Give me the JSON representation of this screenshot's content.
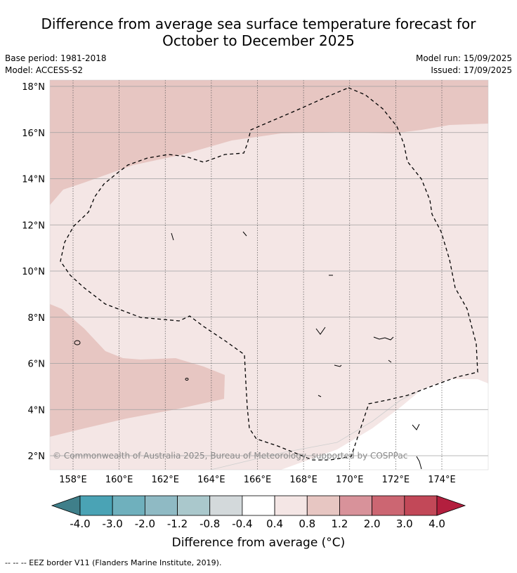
{
  "title_line1": "Difference from average sea surface temperature forecast for",
  "title_line2": "October to December 2025",
  "base_period": "Base period: 1981-2018",
  "model": "Model: ACCESS-S2",
  "model_run": "Model run: 15/09/2025",
  "issued": "Issued: 17/09/2025",
  "copyright": "© Commonwealth of Australia 2025, Bureau of Meteorology, supported by COSPPac",
  "map": {
    "lon_ticks": [
      "158°E",
      "160°E",
      "162°E",
      "164°E",
      "166°E",
      "168°E",
      "170°E",
      "172°E",
      "174°E"
    ],
    "lat_ticks": [
      "18°N",
      "16°N",
      "14°N",
      "12°N",
      "10°N",
      "8°N",
      "6°N",
      "4°N",
      "2°N"
    ],
    "lon_range": [
      157,
      176
    ],
    "lat_range": [
      1.5,
      18.2
    ]
  },
  "legend": {
    "label": "Difference from average (°C)",
    "tick_labels": [
      "-4.0",
      "-3.0",
      "-2.0",
      "-1.2",
      "-0.8",
      "-0.4",
      "0.4",
      "0.8",
      "1.2",
      "2.0",
      "3.0",
      "4.0"
    ],
    "colors": [
      "#3f7f8a",
      "#4aa3b5",
      "#6fb0bd",
      "#8fbac4",
      "#aac8cc",
      "#d3d9db",
      "#ffffff",
      "#f4e6e5",
      "#e7c6c2",
      "#d8929a",
      "#cc6672",
      "#c24858",
      "#b31f3e"
    ]
  },
  "footnote": "--  --  -- EEZ border V11 (Flanders Marine Institute, 2019)."
}
